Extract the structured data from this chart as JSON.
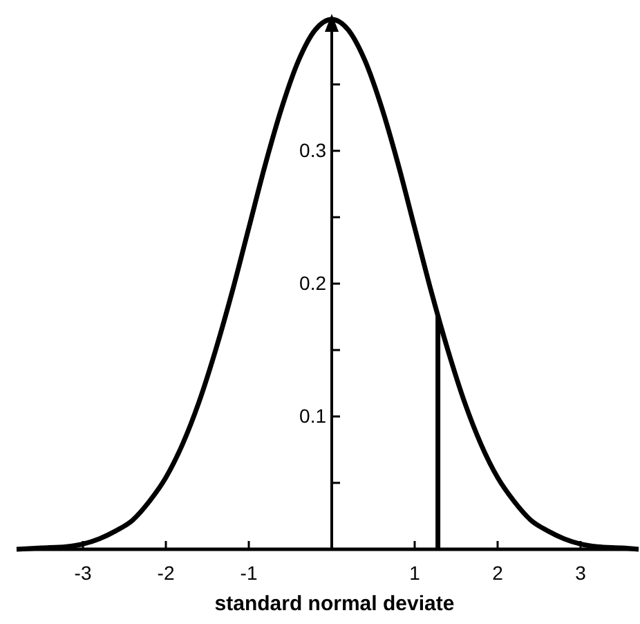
{
  "chart_data": {
    "type": "line",
    "xlabel": "standard normal deviate",
    "xlim": [
      -3.8,
      3.7
    ],
    "ylim": [
      0,
      0.4
    ],
    "xticks": [
      -3,
      -2,
      -1,
      {
        "value": 0,
        "label": null
      },
      1,
      2,
      3
    ],
    "yticks": [
      {
        "value": 0.05,
        "label": null
      },
      0.1,
      {
        "value": 0.15,
        "label": null
      },
      0.2,
      {
        "value": 0.25,
        "label": null
      },
      0.3,
      {
        "value": 0.35,
        "label": null
      }
    ],
    "grid": false,
    "marker": "none",
    "line_style": "solid",
    "series": [
      {
        "color": "#000000",
        "x": [
          -3.8,
          -3.5,
          -3.2,
          -3,
          -2.8,
          -2.6,
          -2.4,
          -2.2,
          -2,
          -1.8,
          -1.6,
          -1.4,
          -1.2,
          -1,
          -0.8,
          -0.6,
          -0.4,
          -0.2,
          0,
          0.2,
          0.4,
          0.6,
          0.8,
          1,
          1.2,
          1.4,
          1.6,
          1.8,
          2,
          2.2,
          2.4,
          2.6,
          2.8,
          3,
          3.2,
          3.5,
          3.7
        ],
        "values": [
          0,
          0.001,
          0.002,
          0.004,
          0.008,
          0.014,
          0.022,
          0.036,
          0.054,
          0.079,
          0.111,
          0.15,
          0.194,
          0.242,
          0.29,
          0.333,
          0.368,
          0.391,
          0.399,
          0.391,
          0.368,
          0.333,
          0.29,
          0.242,
          0.194,
          0.15,
          0.111,
          0.079,
          0.054,
          0.036,
          0.022,
          0.014,
          0.008,
          0.004,
          0.002,
          0.001,
          0
        ]
      },
      {
        "color": "#000000",
        "x": [
          1.28,
          1.28
        ],
        "values": [
          0,
          0.176
        ]
      }
    ]
  }
}
